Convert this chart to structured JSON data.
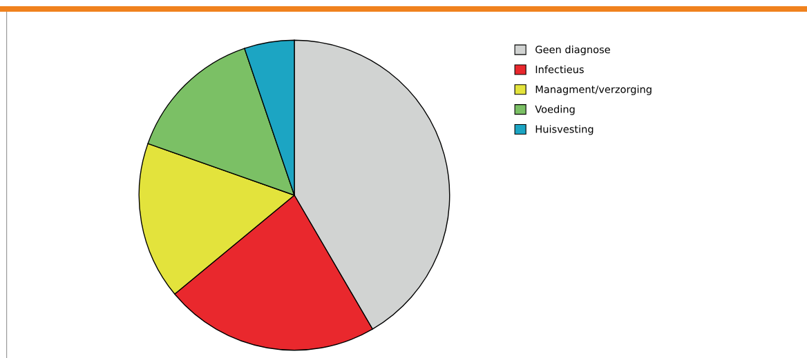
{
  "chart_data": {
    "type": "pie",
    "categories": [
      "Geen diagnose",
      "Infectieus",
      "Managment/verzorging",
      "Voeding",
      "Huisvesting"
    ],
    "values": [
      41.6,
      22.4,
      16.4,
      14.4,
      5.2
    ],
    "colors": [
      "#d1d3d2",
      "#e9282d",
      "#e3e33c",
      "#7bc065",
      "#1ca5c3"
    ],
    "legend": "top right"
  }
}
